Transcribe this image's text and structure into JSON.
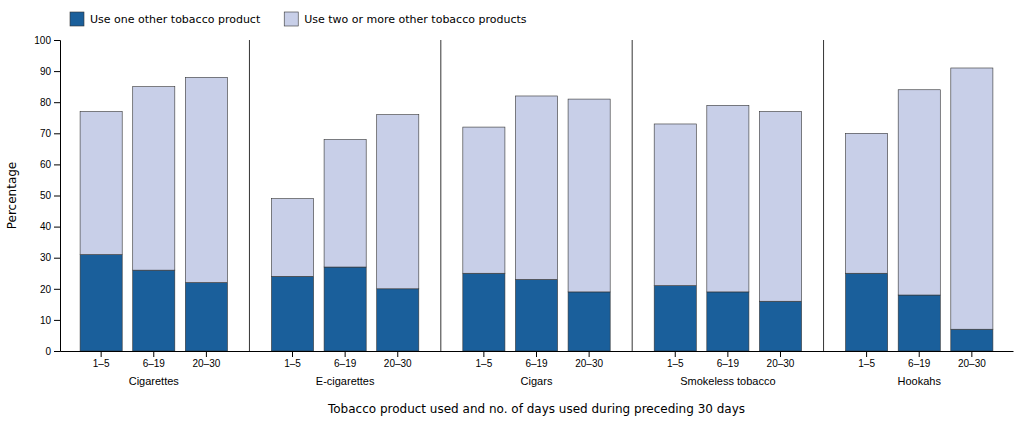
{
  "chart_data": {
    "type": "bar",
    "stacked": true,
    "categories": [
      "1–5",
      "6–19",
      "20–30",
      "1–5",
      "6–19",
      "20–30",
      "1–5",
      "6–19",
      "20–30",
      "1–5",
      "6–19",
      "20–30",
      "1–5",
      "6–19",
      "20–30"
    ],
    "groups": [
      "Cigarettes",
      "E-cigarettes",
      "Cigars",
      "Smokeless tobacco",
      "Hookahs"
    ],
    "series": [
      {
        "name": "Use one other tobacco product",
        "color": "#1a5f9b",
        "values": [
          31,
          26,
          22,
          24,
          27,
          20,
          25,
          23,
          19,
          21,
          19,
          16,
          25,
          18,
          7
        ]
      },
      {
        "name": "Use two or more other tobacco products",
        "color": "#c8cfe8",
        "values": [
          46,
          59,
          66,
          25,
          41,
          56,
          47,
          59,
          62,
          52,
          60,
          61,
          45,
          66,
          84
        ]
      }
    ],
    "ylim": [
      0,
      100
    ],
    "yticks": [
      0,
      10,
      20,
      30,
      40,
      50,
      60,
      70,
      80,
      90,
      100
    ],
    "ylabel": "Percentage",
    "xlabel": "Tobacco product used and no. of days used during preceding 30 days",
    "grid": false,
    "legend": "upper left"
  }
}
